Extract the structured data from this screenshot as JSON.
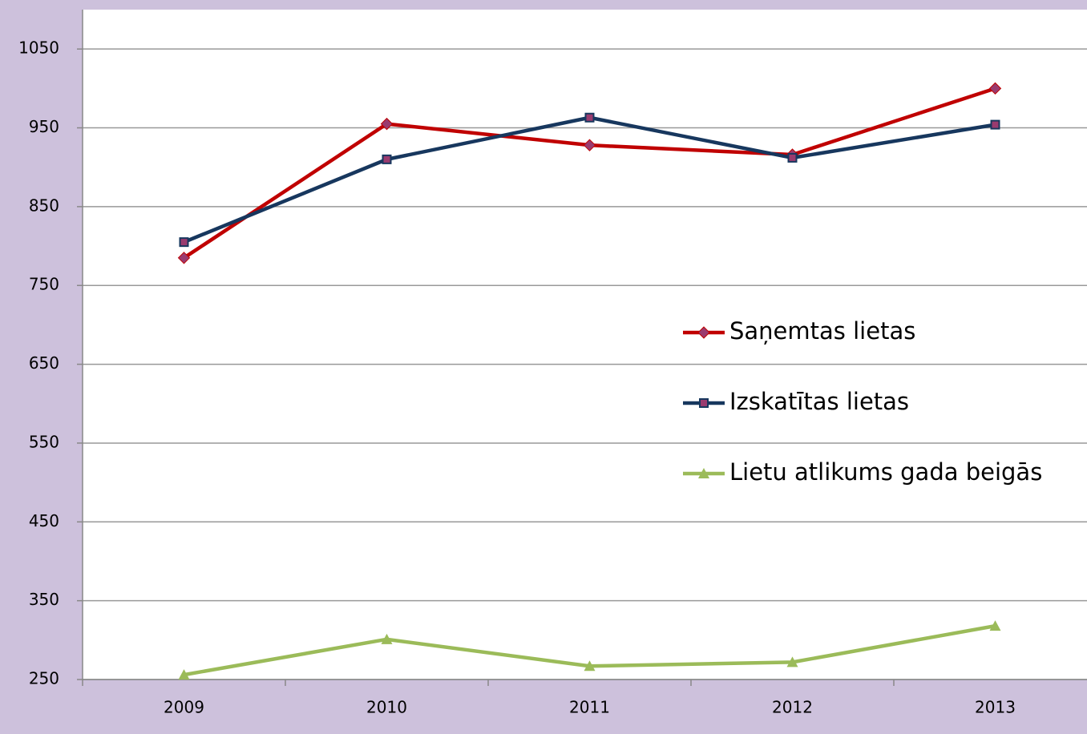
{
  "chart_data": {
    "type": "line",
    "categories": [
      "2009",
      "2010",
      "2011",
      "2012",
      "2013"
    ],
    "series": [
      {
        "name": "Saņemtas lietas",
        "color": "#c00000",
        "marker": "diamond",
        "values": [
          785,
          955,
          928,
          916,
          1000
        ]
      },
      {
        "name": "Izskatītas lietas",
        "color": "#17375e",
        "marker": "square",
        "values": [
          805,
          910,
          963,
          912,
          954
        ]
      },
      {
        "name": "Lietu atlikums gada beigās",
        "color": "#9bbb59",
        "marker": "triangle",
        "values": [
          256,
          301,
          267,
          272,
          318
        ]
      }
    ],
    "ylim": [
      250,
      1100
    ],
    "yticks": [
      250,
      350,
      450,
      550,
      650,
      750,
      850,
      950,
      1050
    ],
    "grid": true,
    "legend": "right"
  }
}
